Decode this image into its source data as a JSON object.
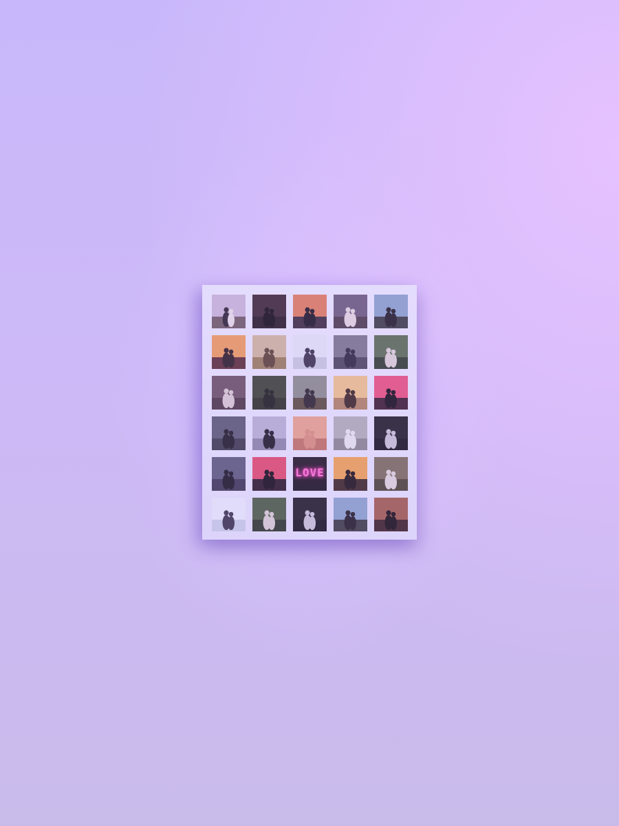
{
  "poster": {
    "photos": [
      {
        "scene": "couple-sitting-field",
        "sky": "#c9b6d6",
        "ground": "#6e5a62",
        "figure": "#2b2230",
        "figure2": "#e8dde4"
      },
      {
        "scene": "dark-silhouette-couple",
        "sky": "#3a2530",
        "ground": "#251820",
        "figure": "#120c12"
      },
      {
        "scene": "sunset-couple-standing",
        "sky": "#e07a5a",
        "ground": "#3a2a3a",
        "figure": "#1a1420"
      },
      {
        "scene": "cafe-couple-table",
        "sky": "#6a5a78",
        "ground": "#4a3a48",
        "figure": "#e6d6dc"
      },
      {
        "scene": "mountain-couple-view",
        "sky": "#8aa0c8",
        "ground": "#3a3a40",
        "figure": "#1f1a22"
      },
      {
        "scene": "sunset-glow-closeup",
        "sky": "#f09a5a",
        "ground": "#5a2a30",
        "figure": "#2a1a20"
      },
      {
        "scene": "blonde-couple-hug",
        "sky": "#d0b49a",
        "ground": "#9a7a58",
        "figure": "#5a4030"
      },
      {
        "scene": "snow-couple-hug",
        "sky": "#e4e4f4",
        "ground": "#c8c8dc",
        "figure": "#3a3048"
      },
      {
        "scene": "selfie-couple-circle",
        "sky": "#7a7488",
        "ground": "#4a4458",
        "figure": "#2a2438"
      },
      {
        "scene": "forest-piggyback",
        "sky": "#5a6a50",
        "ground": "#2e3a2a",
        "figure": "#dcd0d4"
      },
      {
        "scene": "couple-kiss-wall",
        "sky": "#6a5060",
        "ground": "#4a3440",
        "figure": "#d8c8cc"
      },
      {
        "scene": "forest-walk-dark",
        "sky": "#3a4030",
        "ground": "#2a2c22",
        "figure": "#1a1a16"
      },
      {
        "scene": "field-couple-embrace",
        "sky": "#8a8a88",
        "ground": "#5a4a3a",
        "figure": "#2a2228"
      },
      {
        "scene": "golden-couple-kiss",
        "sky": "#f0c088",
        "ground": "#b08060",
        "figure": "#3a2420"
      },
      {
        "scene": "pink-sunset-silhouette",
        "sky": "#e8507a",
        "ground": "#3a1a2a",
        "figure": "#140c14"
      },
      {
        "scene": "beach-dusk-couple",
        "sky": "#5a5870",
        "ground": "#3a3848",
        "figure": "#1a1820"
      },
      {
        "scene": "hand-heart-sky",
        "sky": "#b8b0d0",
        "ground": "#8a84a4",
        "figure": "#1a1620"
      },
      {
        "scene": "finger-heart-warm",
        "sky": "#e8a088",
        "ground": "#c07060",
        "figure": "#d88a78"
      },
      {
        "scene": "wedding-dress-bw",
        "sky": "#b0acb4",
        "ground": "#8a868e",
        "figure": "#e8e4ec"
      },
      {
        "scene": "dark-door-couple",
        "sky": "#1e1a22",
        "ground": "#14101a",
        "figure": "#c8c0d4"
      },
      {
        "scene": "dusk-reaching-hands",
        "sky": "#5a5878",
        "ground": "#3a3450",
        "figure": "#18141e"
      },
      {
        "scene": "red-sunset-kiss",
        "sky": "#e04a6a",
        "ground": "#2a1624",
        "figure": "#120a12"
      },
      {
        "scene": "neon-love-sign",
        "sky": "#1e141e",
        "ground": "#18101a",
        "figure": "#f27ad9",
        "text": "LOVE"
      },
      {
        "scene": "golden-hand-heart",
        "sky": "#f0a050",
        "ground": "#3a2420",
        "figure": "#1a1014"
      },
      {
        "scene": "forest-couple-hug",
        "sky": "#7a6a58",
        "ground": "#4a4030",
        "figure": "#e0d4d8"
      },
      {
        "scene": "bright-sky-hug",
        "sky": "#e8eaf8",
        "ground": "#c8cce4",
        "figure": "#3a3248"
      },
      {
        "scene": "forest-shoulder-ride",
        "sky": "#4a5a40",
        "ground": "#2a3424",
        "figure": "#d8ccd0"
      },
      {
        "scene": "dark-door-couple-2",
        "sky": "#1e1a22",
        "ground": "#14101a",
        "figure": "#c8c0d4"
      },
      {
        "scene": "mountain-couple-view-2",
        "sky": "#8aa0c8",
        "ground": "#3a3a40",
        "figure": "#1f1a22"
      },
      {
        "scene": "warm-dark-embrace",
        "sky": "#a05a4a",
        "ground": "#3a1e22",
        "figure": "#140c10"
      }
    ]
  }
}
